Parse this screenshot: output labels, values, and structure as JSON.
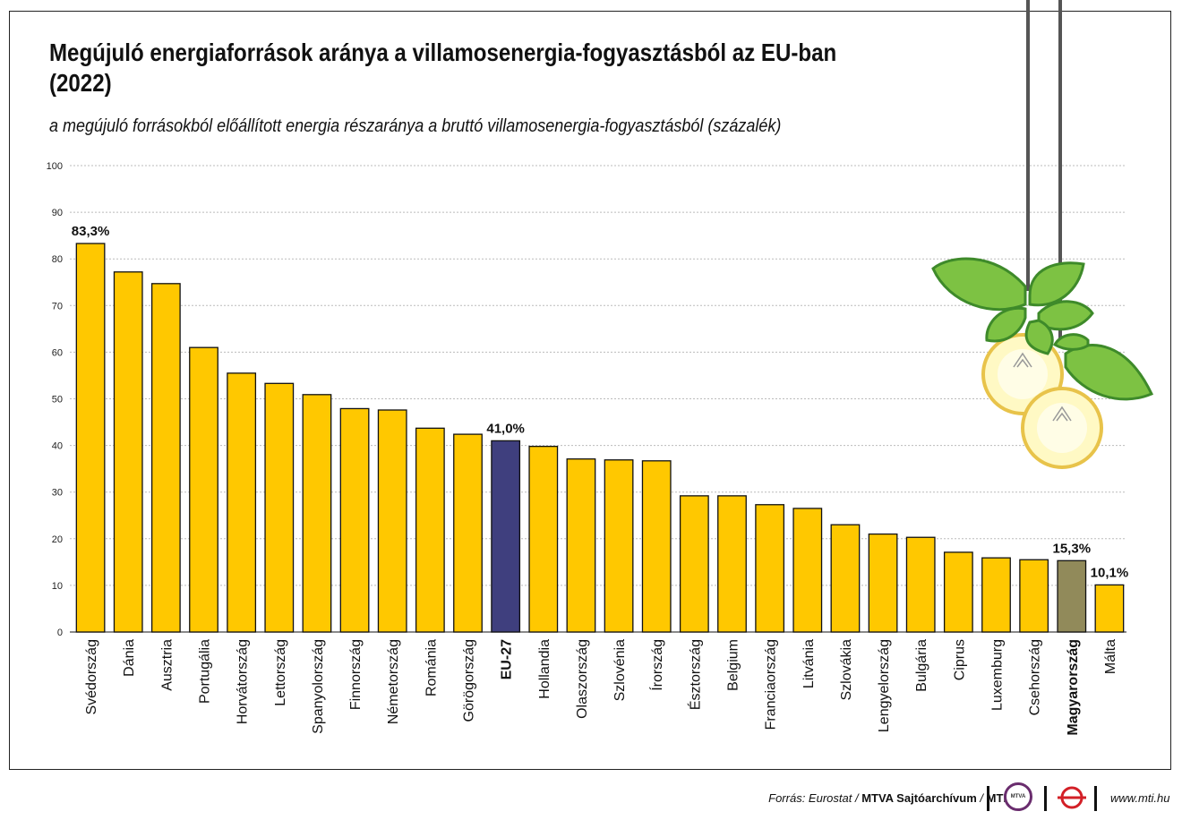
{
  "title_line1": "Megújuló energiaforrások aránya a villamosenergia-fogyasztásból az EU-ban",
  "title_line2": "(2022)",
  "subtitle": "a megújuló forrásokból előállított energia részaránya a bruttó villamosenergia-fogyasztásból (százalék)",
  "footer": {
    "source_prefix": "Forrás: Eurostat / ",
    "source_bold": "MTVA Sajtóarchívum",
    "source_sep": " / ",
    "source_mti": "MTI",
    "mtva_logo": "MTVA",
    "url": "www.mti.hu"
  },
  "colors": {
    "default_bar": "#FFC800",
    "eu_bar": "#3F3F7E",
    "hu_bar": "#918A5A",
    "grid": "#BBBBBB"
  },
  "icons": [
    "light-bulb-icon",
    "leaf-icon",
    "mtva-logo",
    "mti-logo"
  ],
  "chart_data": {
    "type": "bar",
    "ylim": [
      0,
      100
    ],
    "yticks": [
      0,
      10,
      20,
      30,
      40,
      50,
      60,
      70,
      80,
      90,
      100
    ],
    "grid": true,
    "categories": [
      "Svédország",
      "Dánia",
      "Ausztria",
      "Portugália",
      "Horvátország",
      "Lettország",
      "Spanyolország",
      "Finnország",
      "Németország",
      "Románia",
      "Görögország",
      "EU-27",
      "Hollandia",
      "Olaszország",
      "Szlovénia",
      "Írország",
      "Észtország",
      "Belgium",
      "Franciaország",
      "Litvánia",
      "Szlovákia",
      "Lengyelország",
      "Bulgária",
      "Ciprus",
      "Luxemburg",
      "Csehország",
      "Magyarország",
      "Málta"
    ],
    "values": [
      83.3,
      77.2,
      74.7,
      61.0,
      55.5,
      53.3,
      50.9,
      47.9,
      47.6,
      43.7,
      42.4,
      41.0,
      39.8,
      37.1,
      36.9,
      36.7,
      29.2,
      29.2,
      27.3,
      26.5,
      23.0,
      21.0,
      20.3,
      17.1,
      15.9,
      15.5,
      15.3,
      10.1
    ],
    "highlight": {
      "EU-27": "eu",
      "Magyarország": "hu"
    },
    "data_labels": {
      "Svédország": "83,3%",
      "EU-27": "41,0%",
      "Magyarország": "15,3%",
      "Málta": "10,1%"
    }
  }
}
